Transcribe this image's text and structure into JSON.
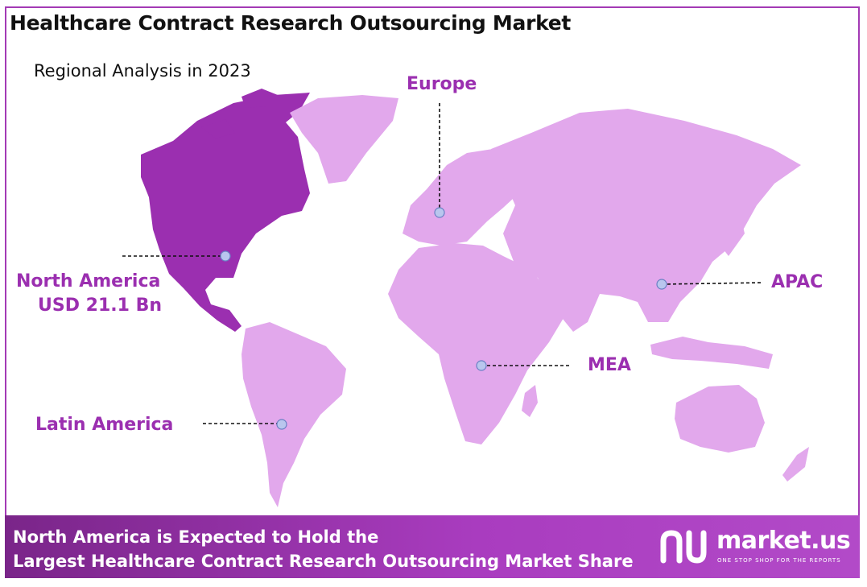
{
  "header": {
    "title": "Healthcare Contract Research Outsourcing Market",
    "subtitle": "Regional Analysis in 2023"
  },
  "regions": {
    "europe": "Europe",
    "north_america": "North America",
    "north_america_value": "USD 21.1 Bn",
    "apac": "APAC",
    "mea": "MEA",
    "latin_america": "Latin America"
  },
  "footer": {
    "line1": "North America is Expected to Hold the",
    "line2": "Largest Healthcare Contract Research Outsourcing Market Share"
  },
  "brand": {
    "name": "market.us",
    "tagline": "ONE STOP SHOP FOR THE REPORTS"
  },
  "colors": {
    "highlight_region": "#9b2fb0",
    "other_regions": "#e2a8ec",
    "label": "#9b2fb0",
    "marker": "#b9c6ee",
    "footer_start": "#7a2589",
    "footer_end": "#b24ac8"
  },
  "map": {
    "highlighted_region": "North America"
  }
}
